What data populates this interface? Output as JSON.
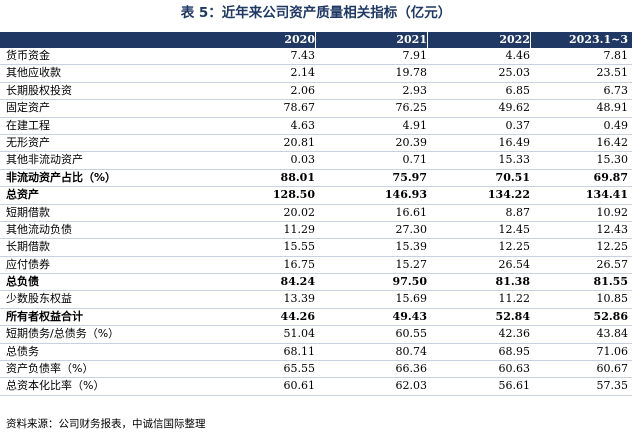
{
  "title": "表 5：近年来公司资产质量相关指标（亿元）",
  "headers": [
    "2020",
    "2021",
    "2022",
    "2023.1~3"
  ],
  "rows": [
    {
      "label": "货币资金",
      "bold": false,
      "values": [
        "7.43",
        "7.91",
        "4.46",
        "7.81"
      ]
    },
    {
      "label": "其他应收款",
      "bold": false,
      "values": [
        "2.14",
        "19.78",
        "25.03",
        "23.51"
      ]
    },
    {
      "label": "长期股权投资",
      "bold": false,
      "values": [
        "2.06",
        "2.93",
        "6.85",
        "6.73"
      ]
    },
    {
      "label": "固定资产",
      "bold": false,
      "values": [
        "78.67",
        "76.25",
        "49.62",
        "48.91"
      ]
    },
    {
      "label": "在建工程",
      "bold": false,
      "values": [
        "4.63",
        "4.91",
        "0.37",
        "0.49"
      ]
    },
    {
      "label": "无形资产",
      "bold": false,
      "values": [
        "20.81",
        "20.39",
        "16.49",
        "16.42"
      ]
    },
    {
      "label": "其他非流动资产",
      "bold": false,
      "values": [
        "0.03",
        "0.71",
        "15.33",
        "15.30"
      ]
    },
    {
      "label": "非流动资产占比（%）",
      "bold": true,
      "values": [
        "88.01",
        "75.97",
        "70.51",
        "69.87"
      ]
    },
    {
      "label": "总资产",
      "bold": true,
      "values": [
        "128.50",
        "146.93",
        "134.22",
        "134.41"
      ]
    },
    {
      "label": "短期借款",
      "bold": false,
      "values": [
        "20.02",
        "16.61",
        "8.87",
        "10.92"
      ]
    },
    {
      "label": "其他流动负债",
      "bold": false,
      "values": [
        "11.29",
        "27.30",
        "12.45",
        "12.43"
      ]
    },
    {
      "label": "长期借款",
      "bold": false,
      "values": [
        "15.55",
        "15.39",
        "12.25",
        "12.25"
      ]
    },
    {
      "label": "应付债券",
      "bold": false,
      "values": [
        "16.75",
        "15.27",
        "26.54",
        "26.57"
      ]
    },
    {
      "label": "总负债",
      "bold": true,
      "values": [
        "84.24",
        "97.50",
        "81.38",
        "81.55"
      ]
    },
    {
      "label": "少数股东权益",
      "bold": false,
      "values": [
        "13.39",
        "15.69",
        "11.22",
        "10.85"
      ]
    },
    {
      "label": "所有者权益合计",
      "bold": true,
      "values": [
        "44.26",
        "49.43",
        "52.84",
        "52.86"
      ]
    },
    {
      "label": "短期债务/总债务（%）",
      "bold": false,
      "values": [
        "51.04",
        "60.55",
        "42.36",
        "43.84"
      ]
    },
    {
      "label": "总债务",
      "bold": false,
      "values": [
        "68.11",
        "80.74",
        "68.95",
        "71.06"
      ]
    },
    {
      "label": "资产负债率（%）",
      "bold": false,
      "values": [
        "65.55",
        "66.36",
        "60.63",
        "60.67"
      ]
    },
    {
      "label": "总资本化比率（%）",
      "bold": false,
      "values": [
        "60.61",
        "62.03",
        "56.61",
        "57.35"
      ]
    }
  ],
  "source": "资料来源：公司财务报表，中诚信国际整理",
  "colors": {
    "title": "#1f3864",
    "header_bg": "#1f3864",
    "header_text": "#ffffff",
    "row_border": "#c9d1de"
  }
}
